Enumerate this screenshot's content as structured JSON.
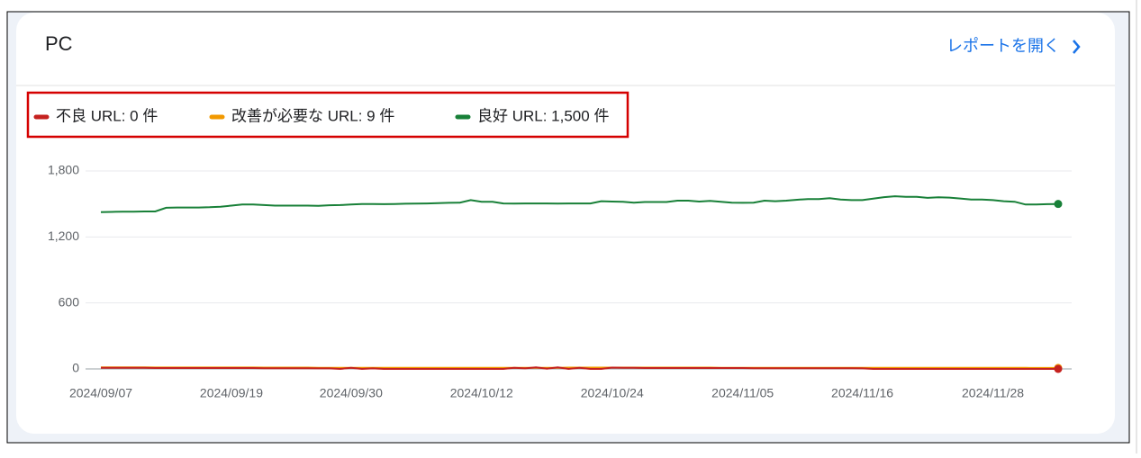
{
  "header": {
    "title": "PC",
    "link": "レポートを開く"
  },
  "chart_data": {
    "type": "line",
    "categories": [
      "2024/09/07",
      null,
      null,
      null,
      null,
      null,
      null,
      null,
      null,
      null,
      null,
      null,
      "2024/09/19",
      null,
      null,
      null,
      null,
      null,
      null,
      null,
      null,
      null,
      null,
      "2024/09/30",
      null,
      null,
      null,
      null,
      null,
      null,
      null,
      null,
      null,
      null,
      null,
      "2024/10/12",
      null,
      null,
      null,
      null,
      null,
      null,
      null,
      null,
      null,
      null,
      null,
      "2024/10/24",
      null,
      null,
      null,
      null,
      null,
      null,
      null,
      null,
      null,
      null,
      null,
      "2024/11/05",
      null,
      null,
      null,
      null,
      null,
      null,
      null,
      null,
      null,
      null,
      "2024/11/16",
      null,
      null,
      null,
      null,
      null,
      null,
      null,
      null,
      null,
      null,
      null,
      "2024/11/28",
      null,
      null,
      null,
      null,
      null,
      null
    ],
    "series": [
      {
        "name": "不良 URL: 0 件",
        "color": "#c5221f",
        "values": [
          10,
          10,
          10,
          10,
          10,
          8,
          8,
          8,
          8,
          8,
          8,
          8,
          8,
          8,
          8,
          6,
          6,
          6,
          6,
          6,
          5,
          5,
          0,
          10,
          0,
          5,
          0,
          0,
          0,
          0,
          0,
          0,
          0,
          0,
          0,
          0,
          0,
          0,
          10,
          5,
          15,
          2,
          14,
          0,
          10,
          0,
          0,
          12,
          10,
          10,
          8,
          8,
          8,
          8,
          8,
          8,
          8,
          8,
          8,
          8,
          6,
          6,
          6,
          6,
          6,
          6,
          6,
          6,
          6,
          6,
          5,
          0,
          0,
          0,
          0,
          0,
          0,
          0,
          0,
          0,
          0,
          0,
          0,
          0,
          0,
          0,
          0,
          0,
          0
        ]
      },
      {
        "name": "改善が必要な URL: 9 件",
        "color": "#f29900",
        "values": [
          14,
          14,
          14,
          14,
          14,
          13,
          13,
          13,
          13,
          13,
          13,
          13,
          13,
          13,
          13,
          12,
          12,
          12,
          12,
          12,
          11,
          11,
          11,
          10,
          10,
          10,
          10,
          10,
          10,
          10,
          10,
          10,
          10,
          10,
          10,
          10,
          10,
          10,
          10,
          10,
          11,
          11,
          11,
          12,
          12,
          12,
          12,
          12,
          12,
          12,
          12,
          12,
          12,
          12,
          12,
          12,
          12,
          11,
          11,
          11,
          11,
          11,
          11,
          11,
          11,
          11,
          11,
          11,
          11,
          11,
          11,
          11,
          11,
          11,
          11,
          11,
          11,
          11,
          11,
          11,
          11,
          11,
          11,
          10,
          10,
          10,
          9,
          9,
          9
        ]
      },
      {
        "name": "良好 URL: 1,500 件",
        "color": "#188038",
        "values": [
          1425,
          1428,
          1430,
          1430,
          1432,
          1432,
          1465,
          1468,
          1468,
          1468,
          1470,
          1475,
          1485,
          1495,
          1495,
          1490,
          1485,
          1485,
          1485,
          1485,
          1483,
          1488,
          1490,
          1495,
          1500,
          1500,
          1498,
          1500,
          1502,
          1503,
          1505,
          1508,
          1510,
          1512,
          1535,
          1520,
          1520,
          1505,
          1503,
          1505,
          1505,
          1505,
          1503,
          1505,
          1505,
          1505,
          1525,
          1522,
          1520,
          1512,
          1518,
          1518,
          1518,
          1530,
          1530,
          1522,
          1528,
          1520,
          1512,
          1510,
          1512,
          1530,
          1525,
          1530,
          1538,
          1545,
          1545,
          1552,
          1540,
          1535,
          1535,
          1548,
          1562,
          1570,
          1565,
          1565,
          1555,
          1560,
          1558,
          1550,
          1540,
          1540,
          1535,
          1525,
          1520,
          1495,
          1495,
          1498,
          1500
        ]
      }
    ],
    "ylim": [
      0,
      1800
    ],
    "yticks": [
      0,
      600,
      {
        "value": 1200,
        "label": "1,200"
      },
      {
        "value": 1800,
        "label": "1,800"
      }
    ],
    "grid": true
  }
}
